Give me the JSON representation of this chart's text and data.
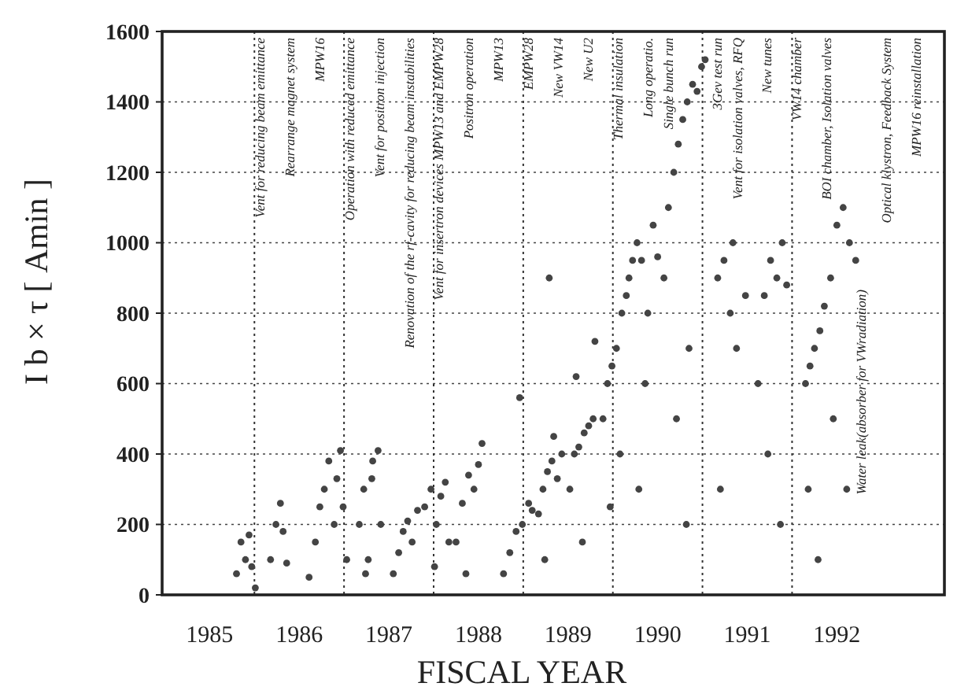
{
  "chart_data": {
    "type": "scatter",
    "xlabel": "FISCAL YEAR",
    "ylabel": "I b × τ   [ Amin ]",
    "xlim": [
      1984.47,
      1993.2
    ],
    "ylim": [
      0,
      1600
    ],
    "xticks": [
      1985,
      1986,
      1987,
      1988,
      1989,
      1990,
      1991,
      1992
    ],
    "yticks": [
      0,
      200,
      400,
      600,
      800,
      1000,
      1200,
      1400,
      1600
    ],
    "grid": "y",
    "marker": "circle",
    "ref_lines": [
      {
        "axis": "x",
        "value": 1985.5,
        "line_style": "dotted"
      },
      {
        "axis": "x",
        "value": 1986.5,
        "line_style": "dotted"
      },
      {
        "axis": "x",
        "value": 1987.5,
        "line_style": "dotted"
      },
      {
        "axis": "x",
        "value": 1988.5,
        "line_style": "dotted"
      },
      {
        "axis": "x",
        "value": 1989.5,
        "line_style": "dotted"
      },
      {
        "axis": "x",
        "value": 1990.5,
        "line_style": "dotted"
      },
      {
        "axis": "x",
        "value": 1991.5,
        "line_style": "dotted"
      }
    ],
    "series": [
      {
        "color": "#444444",
        "x": [
          1985.3,
          1985.35,
          1985.4,
          1985.44,
          1985.47,
          1985.51,
          1985.68,
          1985.74,
          1985.79,
          1985.82,
          1985.86,
          1986.11,
          1986.18,
          1986.23,
          1986.28,
          1986.33,
          1986.39,
          1986.42,
          1986.46,
          1986.49,
          1986.53,
          1986.67,
          1986.72,
          1986.77,
          1986.82,
          1986.88,
          1986.91,
          1986.74,
          1986.81,
          1987.05,
          1987.11,
          1987.16,
          1987.21,
          1987.26,
          1987.32,
          1987.4,
          1987.47,
          1987.53,
          1987.58,
          1987.63,
          1987.67,
          1987.51,
          1987.75,
          1987.82,
          1987.89,
          1987.95,
          1988.0,
          1987.86,
          1988.04,
          1988.28,
          1988.35,
          1988.42,
          1988.49,
          1988.56,
          1988.6,
          1988.46,
          1988.67,
          1988.72,
          1988.77,
          1988.82,
          1988.88,
          1988.93,
          1988.74,
          1988.79,
          1988.84,
          1989.02,
          1989.07,
          1989.12,
          1989.18,
          1989.23,
          1989.28,
          1989.16,
          1989.09,
          1989.3,
          1989.39,
          1989.44,
          1989.49,
          1989.54,
          1989.6,
          1989.65,
          1989.68,
          1989.47,
          1989.58,
          1989.72,
          1989.77,
          1989.82,
          1989.86,
          1989.89,
          1989.95,
          1990.0,
          1989.79,
          1990.07,
          1990.12,
          1990.18,
          1990.23,
          1990.28,
          1990.33,
          1990.39,
          1990.44,
          1990.49,
          1990.21,
          1990.35,
          1990.53,
          1990.32,
          1990.67,
          1990.74,
          1990.81,
          1990.88,
          1990.7,
          1990.84,
          1990.98,
          1991.12,
          1991.19,
          1991.26,
          1991.33,
          1991.39,
          1991.44,
          1991.23,
          1991.37,
          1991.65,
          1991.7,
          1991.75,
          1991.81,
          1991.86,
          1991.68,
          1991.79,
          1991.93,
          1992.0,
          1992.07,
          1992.14,
          1992.21,
          1991.96,
          1992.11
        ],
        "values": [
          60,
          150,
          100,
          170,
          80,
          20,
          100,
          200,
          260,
          180,
          90,
          50,
          150,
          250,
          300,
          380,
          200,
          330,
          410,
          250,
          100,
          200,
          300,
          100,
          380,
          410,
          200,
          60,
          330,
          60,
          120,
          180,
          210,
          150,
          240,
          250,
          300,
          200,
          280,
          320,
          150,
          80,
          150,
          260,
          340,
          300,
          370,
          60,
          430,
          60,
          120,
          180,
          200,
          260,
          240,
          560,
          230,
          300,
          350,
          380,
          330,
          400,
          100,
          900,
          450,
          300,
          400,
          420,
          460,
          480,
          500,
          150,
          620,
          720,
          500,
          600,
          650,
          700,
          800,
          850,
          900,
          250,
          400,
          950,
          1000,
          950,
          600,
          800,
          1050,
          960,
          300,
          900,
          1100,
          1200,
          1280,
          1350,
          1400,
          1450,
          1430,
          1500,
          500,
          700,
          1520,
          200,
          900,
          950,
          800,
          700,
          300,
          1000,
          850,
          600,
          850,
          950,
          900,
          1000,
          880,
          400,
          200,
          600,
          650,
          700,
          750,
          820,
          300,
          100,
          900,
          1050,
          1100,
          1000,
          950,
          500,
          300
        ]
      }
    ],
    "annotations": [
      "Vent for reducing beam emittance",
      "Rearrange magnet system",
      "MPW16",
      "Operation with reduced emittance",
      "Vent for positron injection",
      "Renovation of the rf-cavity for reducing beam instabilities",
      "Vent for insertron devices MPW13 and EMPW28",
      "Positron operation",
      "MPW13",
      "EMPW28",
      "New VW14",
      "New U2",
      "Thermal insulation",
      "Long operatio.",
      "Single bunch run",
      "3Gev test run",
      "Vent for isolation valves, RFQ",
      "New tunes",
      "VW14 chamber",
      "BOI chamber, Isolation valves",
      "Water leak(absorber for VWradiation)",
      "Optical klystron, Feedback System",
      "MPW16 reinstallation"
    ]
  }
}
